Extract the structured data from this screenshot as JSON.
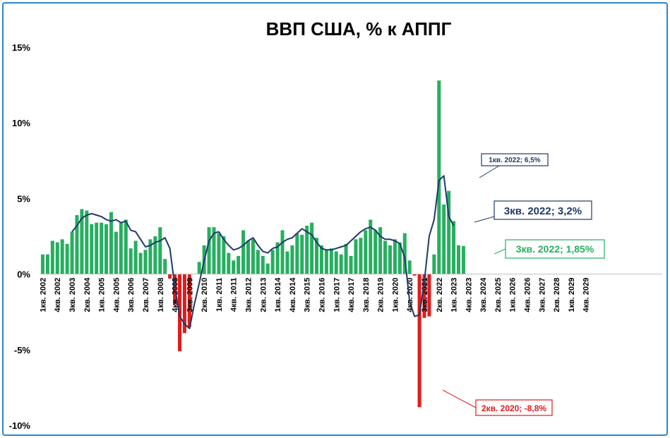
{
  "chart_data": {
    "type": "bar",
    "title": "ВВП США, % к АППГ",
    "xlabel": "",
    "ylabel": "",
    "ylim": [
      -10,
      15
    ],
    "yticks": [
      {
        "value": 15,
        "label": "15%"
      },
      {
        "value": 10,
        "label": "10%"
      },
      {
        "value": 5,
        "label": "5%"
      },
      {
        "value": 0,
        "label": "0%"
      },
      {
        "value": -5,
        "label": "-5%"
      },
      {
        "value": -10,
        "label": "-10%"
      }
    ],
    "grid": false,
    "first_quarter": "1кв. 2002",
    "colors": {
      "positive": "#27ae60",
      "negative": "#e31b1b",
      "line": "#1f3a68"
    },
    "x_tick_labels": [
      "1кв. 2002",
      "4кв. 2002",
      "3кв. 2003",
      "2кв. 2004",
      "1кв. 2005",
      "4кв. 2005",
      "3кв. 2006",
      "2кв. 2007",
      "1кв. 2008",
      "4кв. 2008",
      "3кв. 2009",
      "2кв. 2010",
      "1кв. 2011",
      "4кв. 2011",
      "3кв. 2012",
      "2кв. 2013",
      "1кв. 2014",
      "4кв. 2014",
      "3кв. 2015",
      "2кв. 2016",
      "1кв. 2017",
      "4кв. 2017",
      "3кв. 2018",
      "2кв. 2019",
      "1кв. 2020",
      "4кв. 2020",
      "3кв. 2021",
      "2кв. 2022",
      "1кв. 2023",
      "4кв. 2023",
      "3кв. 2024",
      "2кв. 2025",
      "1кв. 2026",
      "4кв. 2026",
      "3кв. 2027",
      "2кв. 2028",
      "1кв. 2029",
      "4кв. 2029"
    ],
    "series": [
      {
        "values": [
          1.3,
          1.3,
          2.2,
          2.1,
          2.3,
          2.0,
          2.8,
          3.9,
          4.3,
          4.2,
          3.3,
          3.4,
          3.4,
          3.3,
          4.1,
          2.8,
          3.4,
          3.6,
          1.7,
          2.2,
          1.4,
          1.6,
          2.3,
          2.5,
          3.1,
          1.0,
          -0.3,
          -2.0,
          -5.1,
          -3.9,
          -3.5,
          0.0,
          0.8,
          1.9,
          3.1,
          3.1,
          2.7,
          2.5,
          1.4,
          0.9,
          1.2,
          2.9,
          2.2,
          2.3,
          1.6,
          1.2,
          0.7,
          1.6,
          2.1,
          2.9,
          1.5,
          1.9,
          2.7,
          2.6,
          3.2,
          3.4,
          2.4,
          1.9,
          1.6,
          1.7,
          1.5,
          1.3,
          2.0,
          1.2,
          2.3,
          2.4,
          2.9,
          3.6,
          2.9,
          3.1,
          2.2,
          1.9,
          2.3,
          2.1,
          2.7,
          0.9,
          -0.1,
          -8.8,
          -2.9,
          -2.8,
          1.3,
          12.8,
          4.6,
          5.5,
          3.5,
          1.9,
          1.85
        ]
      },
      {
        "values": [
          null,
          null,
          null,
          null,
          null,
          null,
          2.8,
          3.2,
          3.7,
          3.9,
          4.0,
          3.9,
          3.8,
          3.6,
          3.5,
          3.6,
          3.4,
          3.5,
          2.9,
          2.8,
          2.3,
          1.8,
          1.9,
          2.1,
          2.2,
          2.4,
          1.7,
          -0.8,
          -2.8,
          -3.3,
          -3.6,
          -2.0,
          -0.6,
          0.9,
          2.2,
          2.7,
          2.8,
          2.3,
          1.9,
          1.6,
          1.7,
          1.9,
          2.2,
          2.4,
          1.9,
          1.5,
          1.4,
          1.7,
          1.8,
          2.1,
          2.3,
          2.4,
          2.7,
          3.0,
          2.8,
          2.6,
          2.1,
          1.7,
          1.6,
          1.6,
          1.7,
          1.8,
          1.9,
          2.2,
          2.5,
          2.8,
          3.0,
          3.1,
          2.9,
          2.5,
          2.3,
          2.3,
          2.2,
          2.0,
          1.1,
          -1.8,
          -2.8,
          -2.7,
          -0.5,
          2.5,
          3.6,
          6.2,
          6.5,
          3.8,
          3.2
        ]
      }
    ],
    "annotations": [
      {
        "text": "1кв. 2022; 6,5%",
        "color": "#1f3a68"
      },
      {
        "text": "3кв. 2022; 3,2%",
        "color": "#1f3a68"
      },
      {
        "text": "3кв. 2022; 1,85%",
        "color": "#27ae60"
      },
      {
        "text": "2кв. 2020; -8,8%",
        "color": "#e31b1b"
      }
    ]
  }
}
